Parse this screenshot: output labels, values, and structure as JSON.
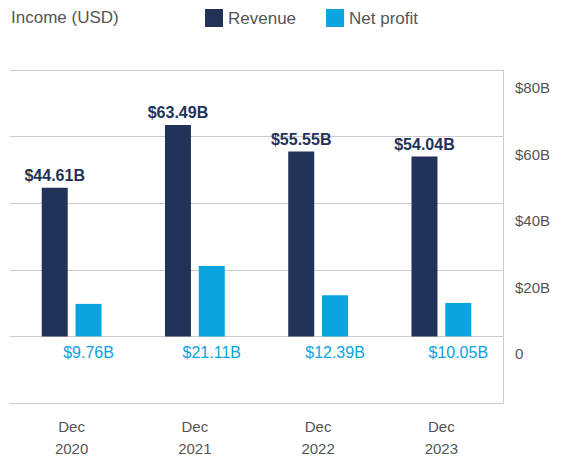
{
  "chart_data": {
    "type": "bar",
    "title": "Income (USD)",
    "categories": [
      "Dec\n2020",
      "Dec\n2021",
      "Dec\n2022",
      "Dec\n2023"
    ],
    "series": [
      {
        "name": "Revenue",
        "color": "#22335a",
        "values": [
          44.61,
          63.49,
          55.55,
          54.04
        ],
        "value_labels": [
          "$44.61B",
          "$63.49B",
          "$55.55B",
          "$54.04B"
        ]
      },
      {
        "name": "Net profit",
        "color": "#0ba3e0",
        "values": [
          9.76,
          21.11,
          12.39,
          10.05
        ],
        "value_labels": [
          "$9.76B",
          "$21.11B",
          "$12.39B",
          "$10.05B"
        ]
      }
    ],
    "ylim": [
      -20,
      80
    ],
    "yticks": [
      0,
      {
        "value": 20,
        "label": "$20B"
      },
      {
        "value": 40,
        "label": "$40B"
      },
      {
        "value": 60,
        "label": "$60B"
      },
      {
        "value": 80,
        "label": "$80B"
      }
    ],
    "grid": true,
    "legend": "top",
    "data_labels": true
  }
}
